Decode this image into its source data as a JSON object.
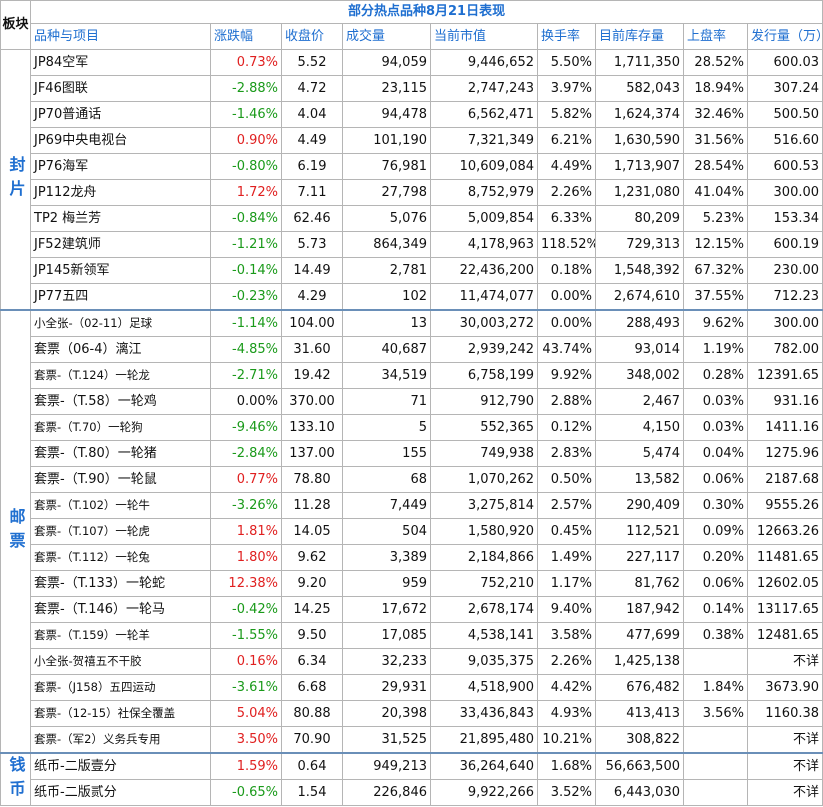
{
  "title": "部分热点品种8月21日表现",
  "board_header": "板块",
  "headers": [
    "品种与项目",
    "涨跌幅",
    "收盘价",
    "成交量",
    "当前市值",
    "换手率",
    "目前库存量",
    "上盘率",
    "发行量（万）"
  ],
  "sections": [
    {
      "board": "封片",
      "rows": [
        {
          "name": "JP84空军",
          "change": "0.73%",
          "dir": "up",
          "price": "5.52",
          "volume": "94,059",
          "mktcap": "9,446,652",
          "turnover": "5.50%",
          "stock": "1,711,350",
          "upratio": "28.52%",
          "issue": "600.03"
        },
        {
          "name": "JF46图联",
          "change": "-2.88%",
          "dir": "down",
          "price": "4.72",
          "volume": "23,115",
          "mktcap": "2,747,243",
          "turnover": "3.97%",
          "stock": "582,043",
          "upratio": "18.94%",
          "issue": "307.24"
        },
        {
          "name": "JP70普通话",
          "change": "-1.46%",
          "dir": "down",
          "price": "4.04",
          "volume": "94,478",
          "mktcap": "6,562,471",
          "turnover": "5.82%",
          "stock": "1,624,374",
          "upratio": "32.46%",
          "issue": "500.50"
        },
        {
          "name": "JP69中央电视台",
          "change": "0.90%",
          "dir": "up",
          "price": "4.49",
          "volume": "101,190",
          "mktcap": "7,321,349",
          "turnover": "6.21%",
          "stock": "1,630,590",
          "upratio": "31.56%",
          "issue": "516.60"
        },
        {
          "name": "JP76海军",
          "change": "-0.80%",
          "dir": "down",
          "price": "6.19",
          "volume": "76,981",
          "mktcap": "10,609,084",
          "turnover": "4.49%",
          "stock": "1,713,907",
          "upratio": "28.54%",
          "issue": "600.53"
        },
        {
          "name": "JP112龙舟",
          "change": "1.72%",
          "dir": "up",
          "price": "7.11",
          "volume": "27,798",
          "mktcap": "8,752,979",
          "turnover": "2.26%",
          "stock": "1,231,080",
          "upratio": "41.04%",
          "issue": "300.00"
        },
        {
          "name": "TP2 梅兰芳",
          "change": "-0.84%",
          "dir": "down",
          "price": "62.46",
          "volume": "5,076",
          "mktcap": "5,009,854",
          "turnover": "6.33%",
          "stock": "80,209",
          "upratio": "5.23%",
          "issue": "153.34"
        },
        {
          "name": "JF52建筑师",
          "change": "-1.21%",
          "dir": "down",
          "price": "5.73",
          "volume": "864,349",
          "mktcap": "4,178,963",
          "turnover": "118.52%",
          "stock": "729,313",
          "upratio": "12.15%",
          "issue": "600.19"
        },
        {
          "name": "JP145新领军",
          "change": "-0.14%",
          "dir": "down",
          "price": "14.49",
          "volume": "2,781",
          "mktcap": "22,436,200",
          "turnover": "0.18%",
          "stock": "1,548,392",
          "upratio": "67.32%",
          "issue": "230.00"
        },
        {
          "name": "JP77五四",
          "change": "-0.23%",
          "dir": "down",
          "price": "4.29",
          "volume": "102",
          "mktcap": "11,474,077",
          "turnover": "0.00%",
          "stock": "2,674,610",
          "upratio": "37.55%",
          "issue": "712.23"
        }
      ]
    },
    {
      "board": "邮票",
      "rows": [
        {
          "name": "小全张-（02-11）足球",
          "change": "-1.14%",
          "dir": "down",
          "price": "104.00",
          "volume": "13",
          "mktcap": "30,003,272",
          "turnover": "0.00%",
          "stock": "288,493",
          "upratio": "9.62%",
          "issue": "300.00",
          "small": true
        },
        {
          "name": "套票（06-4）漓江",
          "change": "-4.85%",
          "dir": "down",
          "price": "31.60",
          "volume": "40,687",
          "mktcap": "2,939,242",
          "turnover": "43.74%",
          "stock": "93,014",
          "upratio": "1.19%",
          "issue": "782.00"
        },
        {
          "name": "套票-（T.124）一轮龙",
          "change": "-2.71%",
          "dir": "down",
          "price": "19.42",
          "volume": "34,519",
          "mktcap": "6,758,199",
          "turnover": "9.92%",
          "stock": "348,002",
          "upratio": "0.28%",
          "issue": "12391.65",
          "small": true
        },
        {
          "name": "套票-（T.58）一轮鸡",
          "change": "0.00%",
          "dir": "flat",
          "price": "370.00",
          "volume": "71",
          "mktcap": "912,790",
          "turnover": "2.88%",
          "stock": "2,467",
          "upratio": "0.03%",
          "issue": "931.16"
        },
        {
          "name": "套票-（T.70）一轮狗",
          "change": "-9.46%",
          "dir": "down",
          "price": "133.10",
          "volume": "5",
          "mktcap": "552,365",
          "turnover": "0.12%",
          "stock": "4,150",
          "upratio": "0.03%",
          "issue": "1411.16",
          "small": true
        },
        {
          "name": "套票-（T.80）一轮猪",
          "change": "-2.84%",
          "dir": "down",
          "price": "137.00",
          "volume": "155",
          "mktcap": "749,938",
          "turnover": "2.83%",
          "stock": "5,474",
          "upratio": "0.04%",
          "issue": "1275.96"
        },
        {
          "name": "套票-（T.90）一轮鼠",
          "change": "0.77%",
          "dir": "up",
          "price": "78.80",
          "volume": "68",
          "mktcap": "1,070,262",
          "turnover": "0.50%",
          "stock": "13,582",
          "upratio": "0.06%",
          "issue": "2187.68"
        },
        {
          "name": "套票-（T.102）一轮牛",
          "change": "-3.26%",
          "dir": "down",
          "price": "11.28",
          "volume": "7,449",
          "mktcap": "3,275,814",
          "turnover": "2.57%",
          "stock": "290,409",
          "upratio": "0.30%",
          "issue": "9555.26",
          "small": true
        },
        {
          "name": "套票-（T.107）一轮虎",
          "change": "1.81%",
          "dir": "up",
          "price": "14.05",
          "volume": "504",
          "mktcap": "1,580,920",
          "turnover": "0.45%",
          "stock": "112,521",
          "upratio": "0.09%",
          "issue": "12663.26",
          "small": true
        },
        {
          "name": "套票-（T.112）一轮兔",
          "change": "1.80%",
          "dir": "up",
          "price": "9.62",
          "volume": "3,389",
          "mktcap": "2,184,866",
          "turnover": "1.49%",
          "stock": "227,117",
          "upratio": "0.20%",
          "issue": "11481.65",
          "small": true
        },
        {
          "name": "套票-（T.133）一轮蛇",
          "change": "12.38%",
          "dir": "up",
          "price": "9.20",
          "volume": "959",
          "mktcap": "752,210",
          "turnover": "1.17%",
          "stock": "81,762",
          "upratio": "0.06%",
          "issue": "12602.05"
        },
        {
          "name": "套票-（T.146）一轮马",
          "change": "-0.42%",
          "dir": "down",
          "price": "14.25",
          "volume": "17,672",
          "mktcap": "2,678,174",
          "turnover": "9.40%",
          "stock": "187,942",
          "upratio": "0.14%",
          "issue": "13117.65"
        },
        {
          "name": "套票-（T.159）一轮羊",
          "change": "-1.55%",
          "dir": "down",
          "price": "9.50",
          "volume": "17,085",
          "mktcap": "4,538,141",
          "turnover": "3.58%",
          "stock": "477,699",
          "upratio": "0.38%",
          "issue": "12481.65",
          "small": true
        },
        {
          "name": "小全张-贺禧五不干胶",
          "change": "0.16%",
          "dir": "up",
          "price": "6.34",
          "volume": "32,233",
          "mktcap": "9,035,375",
          "turnover": "2.26%",
          "stock": "1,425,138",
          "upratio": "",
          "issue": "不详",
          "small": true
        },
        {
          "name": "套票-（J158）五四运动",
          "change": "-3.61%",
          "dir": "down",
          "price": "6.68",
          "volume": "29,931",
          "mktcap": "4,518,900",
          "turnover": "4.42%",
          "stock": "676,482",
          "upratio": "1.84%",
          "issue": "3673.90",
          "small": true
        },
        {
          "name": "套票-（12-15）社保全覆盖",
          "change": "5.04%",
          "dir": "up",
          "price": "80.88",
          "volume": "20,398",
          "mktcap": "33,436,843",
          "turnover": "4.93%",
          "stock": "413,413",
          "upratio": "3.56%",
          "issue": "1160.38",
          "small": true
        },
        {
          "name": "套票-（军2）义务兵专用",
          "change": "3.50%",
          "dir": "up",
          "price": "70.90",
          "volume": "31,525",
          "mktcap": "21,895,480",
          "turnover": "10.21%",
          "stock": "308,822",
          "upratio": "",
          "issue": "不详",
          "small": true
        }
      ]
    },
    {
      "board": "钱币",
      "rows": [
        {
          "name": "纸币-二版壹分",
          "change": "1.59%",
          "dir": "up",
          "price": "0.64",
          "volume": "949,213",
          "mktcap": "36,264,640",
          "turnover": "1.68%",
          "stock": "56,663,500",
          "upratio": "",
          "issue": "不详"
        },
        {
          "name": "纸币-二版贰分",
          "change": "-0.65%",
          "dir": "down",
          "price": "1.54",
          "volume": "226,846",
          "mktcap": "9,922,266",
          "turnover": "3.52%",
          "stock": "6,443,030",
          "upratio": "",
          "issue": "不详"
        }
      ]
    }
  ]
}
